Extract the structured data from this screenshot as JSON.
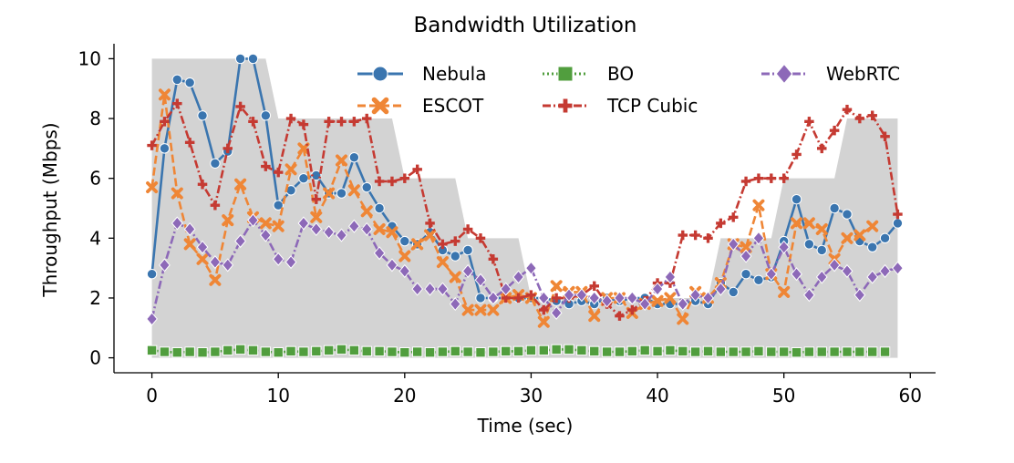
{
  "chart_data": {
    "type": "line",
    "title": "Bandwidth Utilization",
    "xlabel": "Time (sec)",
    "ylabel": "Throughput (Mbps)",
    "xlim": [
      -3,
      62
    ],
    "ylim": [
      -0.5,
      10.5
    ],
    "xticks": [
      0,
      10,
      20,
      30,
      40,
      50,
      60
    ],
    "yticks": [
      0,
      2,
      4,
      6,
      8,
      10
    ],
    "grid": false,
    "legend_position": "top-right",
    "available_bandwidth": {
      "x": [
        0,
        9,
        10,
        19,
        20,
        24,
        25,
        29,
        30,
        44,
        45,
        49,
        50,
        54,
        55,
        59
      ],
      "y": [
        10,
        10,
        8,
        8,
        6,
        6,
        4,
        4,
        2,
        2,
        4,
        4,
        6,
        6,
        8,
        8
      ],
      "color": "#d3d3d3"
    },
    "x": [
      0,
      1,
      2,
      3,
      4,
      5,
      6,
      7,
      8,
      9,
      10,
      11,
      12,
      13,
      14,
      15,
      16,
      17,
      18,
      19,
      20,
      21,
      22,
      23,
      24,
      25,
      26,
      27,
      28,
      29,
      30,
      31,
      32,
      33,
      34,
      35,
      36,
      37,
      38,
      39,
      40,
      41,
      42,
      43,
      44,
      45,
      46,
      47,
      48,
      49,
      50,
      51,
      52,
      53,
      54,
      55,
      56,
      57,
      58,
      59
    ],
    "series": [
      {
        "name": "Nebula",
        "color": "#3a75af",
        "dash": "solid",
        "marker": "circle",
        "values": [
          2.8,
          7.0,
          9.3,
          9.2,
          8.1,
          6.5,
          6.9,
          10.0,
          10.0,
          8.1,
          5.1,
          5.6,
          6.0,
          6.1,
          5.5,
          5.5,
          6.7,
          5.7,
          5.0,
          4.4,
          3.9,
          3.8,
          4.2,
          3.6,
          3.4,
          3.6,
          2.0,
          2.0,
          2.0,
          2.0,
          2.0,
          2.0,
          1.9,
          1.8,
          1.9,
          1.8,
          2.0,
          1.9,
          2.0,
          2.0,
          1.8,
          1.8,
          1.8,
          1.9,
          1.8,
          2.5,
          2.2,
          2.8,
          2.6,
          2.7,
          3.9,
          5.3,
          3.8,
          3.6,
          5.0,
          4.8,
          3.9,
          3.7,
          4.0,
          4.5
        ]
      },
      {
        "name": "ESCOT",
        "color": "#ef8636",
        "dash": "dashed",
        "marker": "x",
        "values": [
          5.7,
          8.8,
          5.5,
          3.8,
          3.3,
          2.6,
          4.6,
          5.8,
          4.7,
          4.5,
          4.4,
          6.3,
          7.0,
          4.7,
          5.5,
          6.6,
          5.6,
          4.9,
          4.3,
          4.2,
          3.4,
          3.8,
          4.1,
          3.2,
          2.7,
          1.6,
          1.6,
          1.6,
          2.0,
          2.1,
          2.0,
          1.2,
          2.4,
          2.2,
          2.2,
          1.4,
          2.0,
          2.0,
          1.5,
          1.8,
          1.9,
          2.0,
          1.3,
          2.2,
          2.0,
          2.5,
          3.8,
          3.7,
          5.1,
          2.8,
          2.2,
          4.5,
          4.5,
          4.3,
          3.3,
          4.0,
          4.1,
          4.4,
          null,
          null
        ]
      },
      {
        "name": "BO",
        "color": "#519e3e",
        "dash": "dotted",
        "marker": "square",
        "values": [
          0.25,
          0.2,
          0.18,
          0.2,
          0.18,
          0.2,
          0.25,
          0.28,
          0.25,
          0.2,
          0.18,
          0.22,
          0.2,
          0.22,
          0.25,
          0.28,
          0.25,
          0.22,
          0.22,
          0.2,
          0.18,
          0.2,
          0.18,
          0.2,
          0.22,
          0.2,
          0.18,
          0.2,
          0.22,
          0.22,
          0.25,
          0.25,
          0.28,
          0.28,
          0.25,
          0.22,
          0.2,
          0.2,
          0.22,
          0.25,
          0.22,
          0.25,
          0.22,
          0.2,
          0.22,
          0.2,
          0.2,
          0.2,
          0.22,
          0.2,
          0.2,
          0.18,
          0.2,
          0.2,
          0.2,
          0.2,
          0.2,
          0.2,
          0.2,
          null
        ]
      },
      {
        "name": "TCP Cubic",
        "color": "#c53a32",
        "dash": "dashdot",
        "marker": "plus",
        "values": [
          7.1,
          7.9,
          8.5,
          7.2,
          5.8,
          5.1,
          7.0,
          8.4,
          7.9,
          6.4,
          6.2,
          8.0,
          7.8,
          5.3,
          7.9,
          7.9,
          7.9,
          8.0,
          5.9,
          5.9,
          6.0,
          6.3,
          4.5,
          3.8,
          3.9,
          4.3,
          4.0,
          3.3,
          2.0,
          2.0,
          2.1,
          1.6,
          2.0,
          2.0,
          2.1,
          2.4,
          1.8,
          1.4,
          1.6,
          1.9,
          2.5,
          2.5,
          4.1,
          4.1,
          4.0,
          4.5,
          4.7,
          5.9,
          6.0,
          6.0,
          6.0,
          6.8,
          7.9,
          7.0,
          7.6,
          8.3,
          8.0,
          8.1,
          7.4,
          4.8
        ]
      },
      {
        "name": "WebRTC",
        "color": "#8d69b8",
        "dash": "dashdot",
        "marker": "diamond",
        "values": [
          1.3,
          3.1,
          4.5,
          4.3,
          3.7,
          3.2,
          3.1,
          3.9,
          4.6,
          4.1,
          3.3,
          3.2,
          4.5,
          4.3,
          4.2,
          4.1,
          4.4,
          4.3,
          3.5,
          3.1,
          2.9,
          2.3,
          2.3,
          2.3,
          1.8,
          2.9,
          2.6,
          2.0,
          2.3,
          2.7,
          3.0,
          2.0,
          1.5,
          2.1,
          2.1,
          2.0,
          1.9,
          2.0,
          2.0,
          1.8,
          2.3,
          2.7,
          1.8,
          2.1,
          2.0,
          2.3,
          3.8,
          3.4,
          4.0,
          2.8,
          3.7,
          2.8,
          2.1,
          2.7,
          3.1,
          2.9,
          2.1,
          2.7,
          2.9,
          3.0
        ]
      }
    ]
  }
}
